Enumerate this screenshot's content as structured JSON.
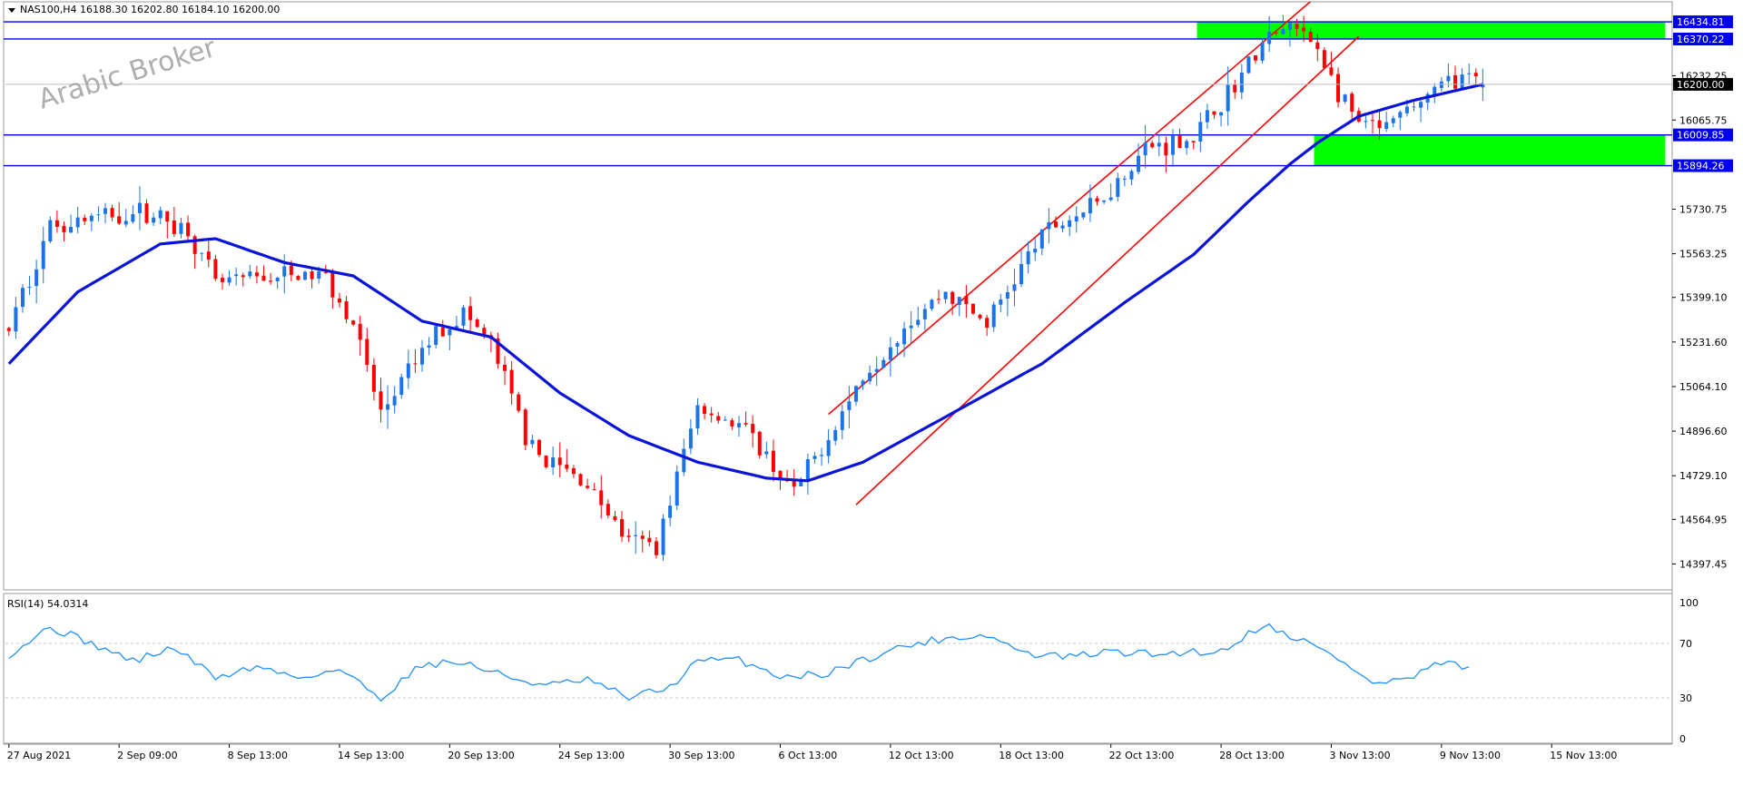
{
  "header": {
    "symbol_line": "NAS100,H4  16188.30 16202.80 16184.10 16200.00"
  },
  "watermark": "Arabic Broker",
  "colors": {
    "bull": "#1a73e8",
    "bear": "#ff0000",
    "ma": "#0a14d8",
    "channel": "#ff0000",
    "level": "#0000ee",
    "zone": "#00ff00",
    "rsi": "#1e90ff",
    "grid": "#c8c8c8",
    "text": "#000000"
  },
  "chart_data": [
    {
      "type": "candlestick",
      "symbol": "NAS100",
      "timeframe": "H4",
      "ohlc_last": {
        "open": 16188.3,
        "high": 16202.8,
        "low": 16184.1,
        "close": 16200.0
      },
      "current_price_label": "16200.00",
      "ylim": [
        14300,
        16510
      ],
      "y_tick_labels": [
        "16232.25",
        "16065.75",
        "15730.75",
        "15563.25",
        "15399.10",
        "15231.60",
        "15064.10",
        "14896.60",
        "14729.10",
        "14564.95",
        "14397.45"
      ],
      "x_tick_labels": [
        "27 Aug 2021",
        "2 Sep 09:00",
        "8 Sep 13:00",
        "14 Sep 13:00",
        "20 Sep 13:00",
        "24 Sep 13:00",
        "30 Sep 13:00",
        "6 Oct 13:00",
        "12 Oct 13:00",
        "18 Oct 13:00",
        "22 Oct 13:00",
        "28 Oct 13:00",
        "3 Nov 13:00",
        "9 Nov 13:00",
        "15 Nov 13:00"
      ],
      "price_path": [
        [
          0,
          15280
        ],
        [
          6,
          15670
        ],
        [
          12,
          15700
        ],
        [
          20,
          15720
        ],
        [
          26,
          15650
        ],
        [
          30,
          15450
        ],
        [
          40,
          15480
        ],
        [
          46,
          15480
        ],
        [
          50,
          15300
        ],
        [
          54,
          14960
        ],
        [
          62,
          15270
        ],
        [
          66,
          15340
        ],
        [
          70,
          15220
        ],
        [
          76,
          14820
        ],
        [
          84,
          14700
        ],
        [
          90,
          14480
        ],
        [
          94,
          14470
        ],
        [
          100,
          14990
        ],
        [
          106,
          14920
        ],
        [
          110,
          14800
        ],
        [
          114,
          14660
        ],
        [
          124,
          15100
        ],
        [
          130,
          15300
        ],
        [
          136,
          15420
        ],
        [
          142,
          15300
        ],
        [
          150,
          15640
        ],
        [
          158,
          15750
        ],
        [
          165,
          15960
        ],
        [
          172,
          16000
        ],
        [
          178,
          16200
        ],
        [
          182,
          16350
        ],
        [
          186,
          16420
        ],
        [
          190,
          16340
        ],
        [
          193,
          16160
        ],
        [
          196,
          16050
        ],
        [
          200,
          16030
        ],
        [
          205,
          16140
        ],
        [
          210,
          16230
        ],
        [
          214,
          16200
        ]
      ],
      "moving_average_path": [
        [
          0,
          15150
        ],
        [
          10,
          15420
        ],
        [
          22,
          15600
        ],
        [
          30,
          15620
        ],
        [
          40,
          15530
        ],
        [
          50,
          15480
        ],
        [
          60,
          15310
        ],
        [
          70,
          15250
        ],
        [
          80,
          15040
        ],
        [
          90,
          14880
        ],
        [
          100,
          14780
        ],
        [
          110,
          14720
        ],
        [
          116,
          14710
        ],
        [
          124,
          14780
        ],
        [
          136,
          14950
        ],
        [
          150,
          15150
        ],
        [
          162,
          15380
        ],
        [
          172,
          15560
        ],
        [
          180,
          15760
        ],
        [
          186,
          15900
        ],
        [
          190,
          15980
        ],
        [
          196,
          16080
        ],
        [
          204,
          16140
        ],
        [
          214,
          16200
        ]
      ],
      "horizontal_levels": [
        16434.81,
        16370.22,
        16009.85,
        15894.26
      ],
      "level_labels": [
        "16434.81",
        "16370.22",
        "16009.85",
        "15894.26"
      ],
      "supply_zone": {
        "from_index": 173,
        "to_index": 241,
        "price_range": [
          16370.22,
          16434.81
        ]
      },
      "demand_zone": {
        "from_index": 190,
        "to_index": 241,
        "price_range": [
          15894.26,
          16009.85
        ]
      },
      "channel_lines": [
        {
          "from": [
            119,
            14960
          ],
          "to": [
            193,
            16600
          ]
        },
        {
          "from": [
            123,
            14620
          ],
          "to": [
            196,
            16380
          ]
        }
      ]
    },
    {
      "type": "line",
      "title": "RSI(14) 54.0314",
      "ylim": [
        0,
        100
      ],
      "y_tick_labels": [
        "100",
        "70",
        "30",
        "0"
      ],
      "reference_levels": [
        70,
        30
      ],
      "rsi_path": [
        [
          0,
          62
        ],
        [
          6,
          82
        ],
        [
          12,
          70
        ],
        [
          18,
          57
        ],
        [
          24,
          67
        ],
        [
          30,
          45
        ],
        [
          36,
          53
        ],
        [
          42,
          45
        ],
        [
          48,
          51
        ],
        [
          54,
          30
        ],
        [
          60,
          55
        ],
        [
          66,
          56
        ],
        [
          72,
          46
        ],
        [
          78,
          39
        ],
        [
          84,
          43
        ],
        [
          90,
          30
        ],
        [
          96,
          38
        ],
        [
          100,
          57
        ],
        [
          106,
          58
        ],
        [
          112,
          46
        ],
        [
          118,
          47
        ],
        [
          124,
          58
        ],
        [
          130,
          68
        ],
        [
          136,
          74
        ],
        [
          142,
          76
        ],
        [
          148,
          62
        ],
        [
          154,
          60
        ],
        [
          160,
          64
        ],
        [
          166,
          62
        ],
        [
          172,
          64
        ],
        [
          176,
          64
        ],
        [
          182,
          84
        ],
        [
          188,
          72
        ],
        [
          194,
          56
        ],
        [
          198,
          40
        ],
        [
          204,
          45
        ],
        [
          208,
          56
        ],
        [
          212,
          52
        ]
      ]
    }
  ]
}
